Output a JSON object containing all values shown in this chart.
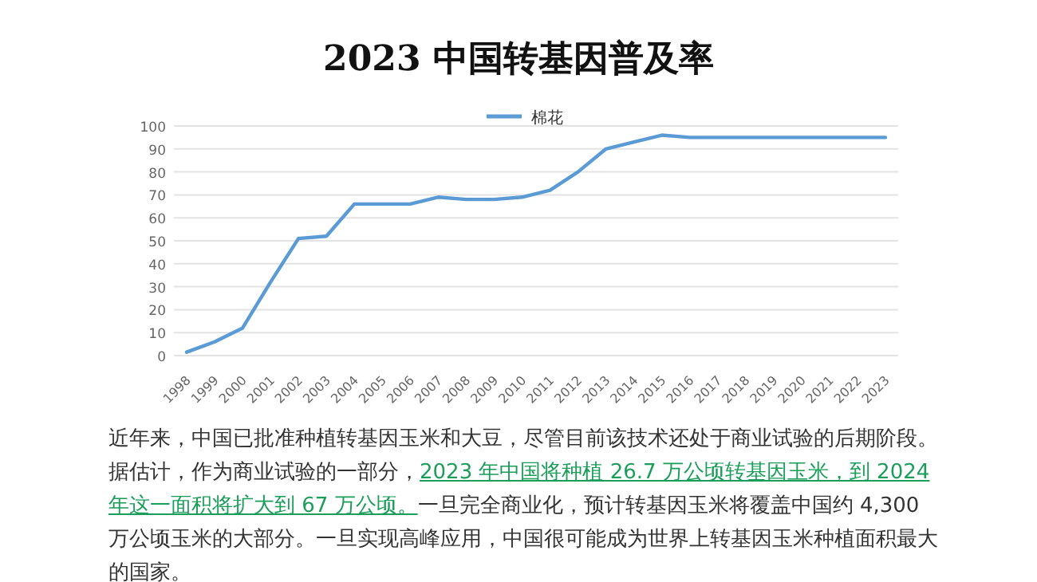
{
  "chart_data": {
    "type": "line",
    "title": "2023 中国转基因普及率",
    "categories": [
      "1998",
      "1999",
      "2000",
      "2001",
      "2002",
      "2003",
      "2004",
      "2005",
      "2006",
      "2007",
      "2008",
      "2009",
      "2010",
      "2011",
      "2012",
      "2013",
      "2014",
      "2015",
      "2016",
      "2017",
      "2018",
      "2019",
      "2020",
      "2021",
      "2022",
      "2023"
    ],
    "series": [
      {
        "name": "棉花",
        "color": "#5b9bd5",
        "values": [
          1.5,
          6,
          12,
          32,
          51,
          52,
          66,
          66,
          66,
          69,
          68,
          68,
          69,
          72,
          80,
          90,
          93,
          96,
          95,
          95,
          95,
          95,
          95,
          95,
          95,
          95
        ]
      }
    ],
    "ylim": [
      0,
      100
    ],
    "yticks": [
      0,
      10,
      20,
      30,
      40,
      50,
      60,
      70,
      80,
      90,
      100
    ],
    "grid": "y",
    "legend": "top",
    "marker": "none",
    "line_style": "solid",
    "annotations": [
      "近年来，中国已批准种植转基因玉米和大豆，尽管目前该技术还处于商业试验的后期阶段。据估计，作为商业试验的一部分，",
      "2023 年中国将种植 26.7 万公顷转基因玉米，到 2024 年这一面积将扩大到 67 万公顷。",
      "一旦完全商业化，预计转基因玉米将覆盖中国约  4,300 万公顷玉米的大部分。一旦实现高峰应用，中国很可能成为世界上转基因玉米种植面积最大的国家。"
    ]
  }
}
